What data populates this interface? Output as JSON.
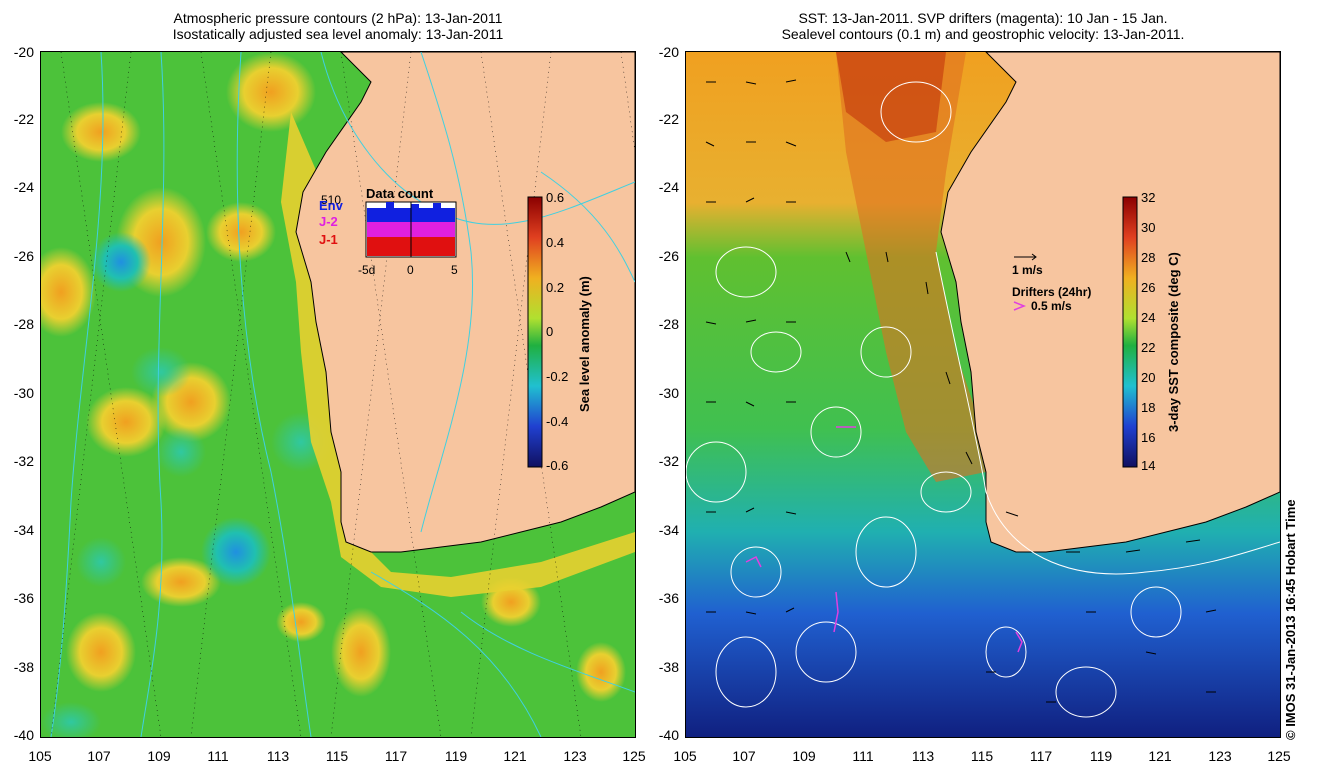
{
  "left_panel": {
    "title_line1": "Atmospheric pressure contours (2 hPa): 13-Jan-2011",
    "title_line2": "Isostatically adjusted sea level anomaly: 13-Jan-2011",
    "colorbar_label": "Sea level anomaly (m)",
    "colorbar_ticks": [
      "0.6",
      "0.4",
      "0.2",
      "0",
      "-0.2",
      "-0.4",
      "-0.6"
    ],
    "inset": {
      "title": "Data count",
      "count": "510",
      "legend": [
        "Env",
        "J-2",
        "J-1"
      ],
      "xticks": [
        "-5d",
        "0",
        "5"
      ]
    }
  },
  "right_panel": {
    "title_line1": "SST: 13-Jan-2011. SVP drifters (magenta): 10 Jan - 15 Jan.",
    "title_line2": "Sealevel contours (0.1 m) and geostrophic velocity: 13-Jan-2011.",
    "colorbar_label": "3-day SST composite (deg C)",
    "colorbar_ticks": [
      "32",
      "30",
      "28",
      "26",
      "24",
      "22",
      "20",
      "18",
      "16",
      "14"
    ],
    "velocity_legend": "1 m/s",
    "drifter_legend_title": "Drifters (24hr)",
    "drifter_legend_speed": "0.5 m/s"
  },
  "axes": {
    "y_ticks": [
      "-20",
      "-22",
      "-24",
      "-26",
      "-28",
      "-30",
      "-32",
      "-34",
      "-36",
      "-38",
      "-40"
    ],
    "x_ticks": [
      "105",
      "107",
      "109",
      "111",
      "113",
      "115",
      "117",
      "119",
      "121",
      "123",
      "125"
    ]
  },
  "copyright": "© IMOS 31-Jan-2013 16:45 Hobart Time",
  "colors": {
    "land": "#f7c59f",
    "ocean_sla": "#4cc23a",
    "coast": "#000000",
    "pressure_contour": "#40d0e0",
    "drifter": "#e040e0",
    "sealevel_contour": "#ffffff"
  }
}
